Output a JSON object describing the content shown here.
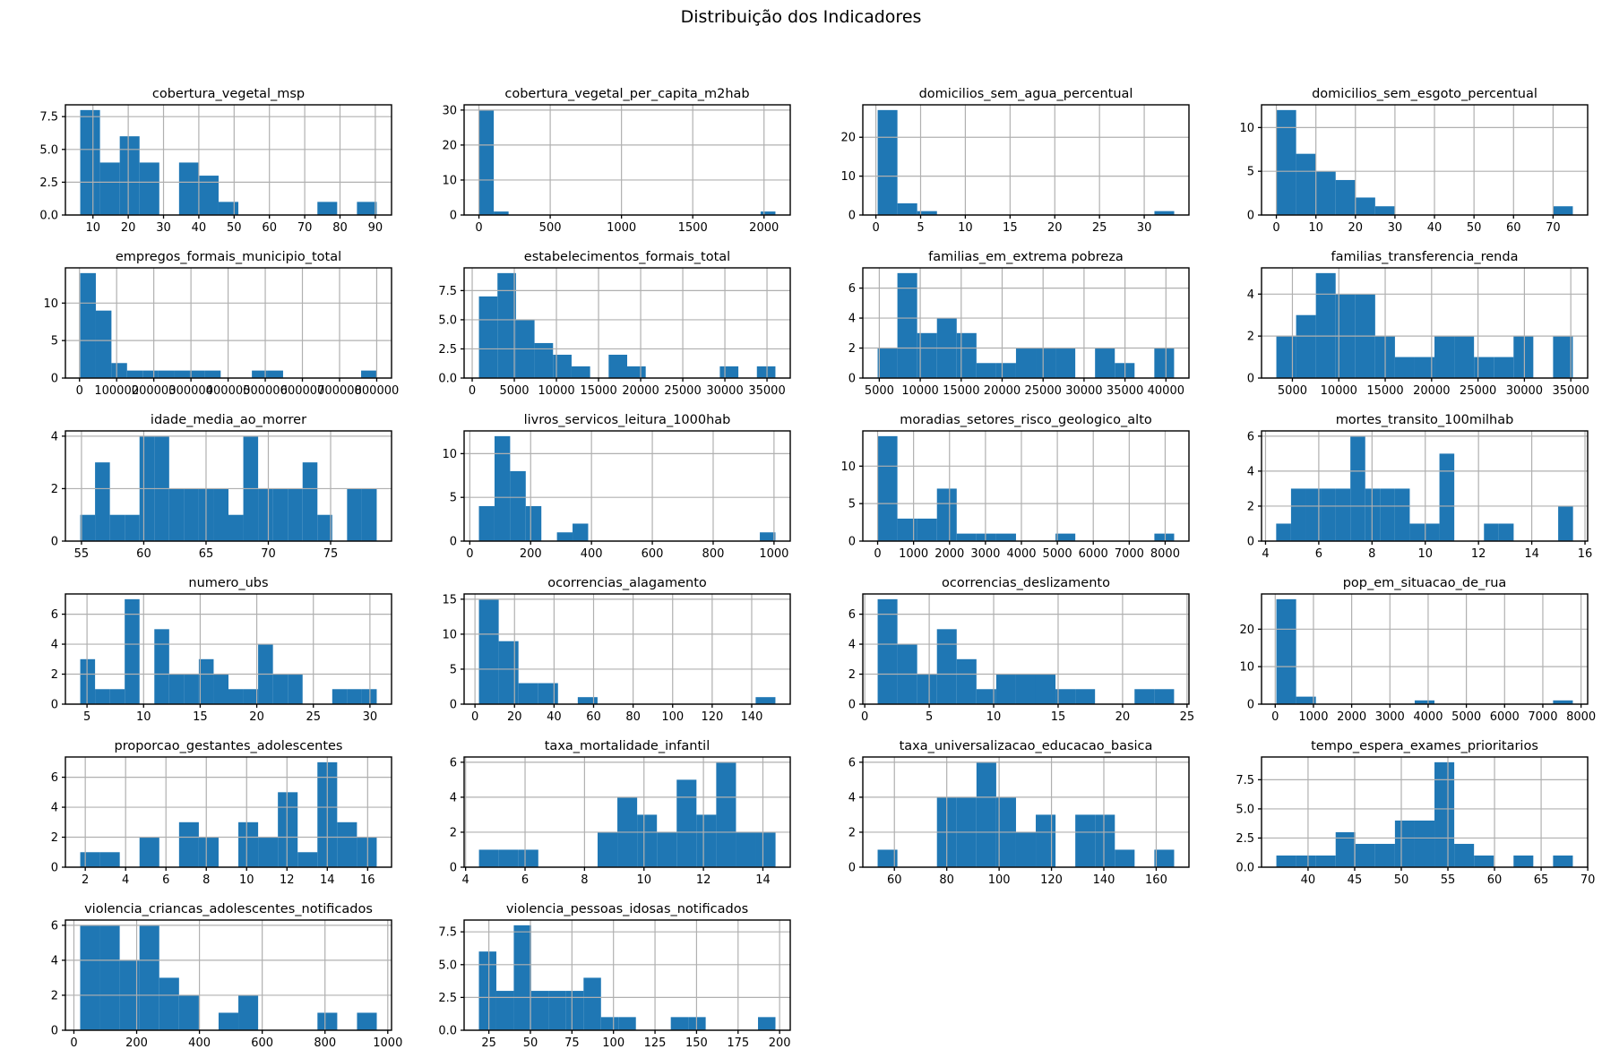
{
  "title": "Distribuição dos Indicadores",
  "colors": {
    "bar": "#1f77b4",
    "grid": "#b0b0b0",
    "spine": "#000000",
    "text": "#000000"
  },
  "chart_data": [
    {
      "type": "bar",
      "kind": "histogram",
      "title": "cobertura_vegetal_msp",
      "bin_start": 6.4,
      "bin_width": 5.6,
      "values": [
        8,
        4,
        6,
        4,
        0,
        4,
        3,
        1,
        0,
        0,
        0,
        0,
        1,
        0,
        1
      ],
      "xlim": [
        2.2,
        94.6
      ],
      "ylim": [
        0,
        8.4
      ],
      "xticks": [
        10,
        20,
        30,
        40,
        50,
        60,
        70,
        80,
        90
      ],
      "xtick_labels": [
        "10",
        "20",
        "30",
        "40",
        "50",
        "60",
        "70",
        "80",
        "90"
      ],
      "yticks": [
        0,
        2.5,
        5,
        7.5
      ],
      "ytick_labels": [
        "0.0",
        "2.5",
        "5.0",
        "7.5"
      ]
    },
    {
      "type": "bar",
      "kind": "histogram",
      "title": "cobertura_vegetal_per_capita_m2hab",
      "bin_start": 0,
      "bin_width": 104,
      "values": [
        30,
        1,
        0,
        0,
        0,
        0,
        0,
        0,
        0,
        0,
        0,
        0,
        0,
        0,
        0,
        0,
        0,
        0,
        0,
        1
      ],
      "xlim": [
        -104,
        2184
      ],
      "ylim": [
        0,
        31.5
      ],
      "xticks": [
        0,
        500,
        1000,
        1500,
        2000
      ],
      "xtick_labels": [
        "0",
        "500",
        "1000",
        "1500",
        "2000"
      ],
      "yticks": [
        0,
        10,
        20,
        30
      ],
      "ytick_labels": [
        "0",
        "10",
        "20",
        "30"
      ]
    },
    {
      "type": "bar",
      "kind": "histogram",
      "title": "domicilios_sem_agua_percentual",
      "bin_start": 0.2,
      "bin_width": 2.21,
      "values": [
        27,
        3,
        1,
        0,
        0,
        0,
        0,
        0,
        0,
        0,
        0,
        0,
        0,
        0,
        1
      ],
      "xlim": [
        -1.46,
        35.0
      ],
      "ylim": [
        0,
        28.35
      ],
      "xticks": [
        0,
        5,
        10,
        15,
        20,
        25,
        30
      ],
      "xtick_labels": [
        "0",
        "5",
        "10",
        "15",
        "20",
        "25",
        "30"
      ],
      "yticks": [
        0,
        10,
        20
      ],
      "ytick_labels": [
        "0",
        "10",
        "20"
      ]
    },
    {
      "type": "bar",
      "kind": "histogram",
      "title": "domicilios_sem_esgoto_percentual",
      "bin_start": 0,
      "bin_width": 5,
      "values": [
        12,
        7,
        5,
        4,
        2,
        1,
        0,
        0,
        0,
        0,
        0,
        0,
        0,
        0,
        1
      ],
      "xlim": [
        -3.75,
        78.75
      ],
      "ylim": [
        0,
        12.6
      ],
      "xticks": [
        0,
        10,
        20,
        30,
        40,
        50,
        60,
        70
      ],
      "xtick_labels": [
        "0",
        "10",
        "20",
        "30",
        "40",
        "50",
        "60",
        "70"
      ],
      "yticks": [
        0,
        5,
        10
      ],
      "ytick_labels": [
        "0",
        "5",
        "10"
      ]
    },
    {
      "type": "bar",
      "kind": "histogram",
      "title": "empregos_formais_municipio_total",
      "bin_start": 2000,
      "bin_width": 42000,
      "values": [
        14,
        9,
        2,
        1,
        1,
        1,
        1,
        1,
        1,
        0,
        0,
        1,
        1,
        0,
        0,
        0,
        0,
        0,
        1
      ],
      "xlim": [
        -37900,
        839900
      ],
      "ylim": [
        0,
        14.7
      ],
      "xticks": [
        0,
        100000,
        200000,
        300000,
        400000,
        500000,
        600000,
        700000,
        800000
      ],
      "xtick_labels": [
        "0",
        "100000",
        "200000",
        "300000",
        "400000",
        "500000",
        "600000",
        "700000",
        "800000"
      ],
      "yticks": [
        0,
        5,
        10
      ],
      "ytick_labels": [
        "0",
        "5",
        "10"
      ]
    },
    {
      "type": "bar",
      "kind": "histogram",
      "title": "estabelecimentos_formais_total",
      "bin_start": 800,
      "bin_width": 2200,
      "values": [
        7,
        9,
        5,
        3,
        2,
        1,
        0,
        2,
        1,
        0,
        0,
        0,
        0,
        1,
        0,
        1
      ],
      "xlim": [
        -960,
        37760
      ],
      "ylim": [
        0,
        9.45
      ],
      "xticks": [
        0,
        5000,
        10000,
        15000,
        20000,
        25000,
        30000,
        35000
      ],
      "xtick_labels": [
        "0",
        "5000",
        "10000",
        "15000",
        "20000",
        "25000",
        "30000",
        "35000"
      ],
      "yticks": [
        0,
        2.5,
        5,
        7.5
      ],
      "ytick_labels": [
        "0.0",
        "2.5",
        "5.0",
        "7.5"
      ]
    },
    {
      "type": "bar",
      "kind": "histogram",
      "title": "familias_em_extrema pobreza",
      "bin_start": 4800,
      "bin_width": 2413,
      "values": [
        2,
        7,
        3,
        4,
        3,
        1,
        1,
        2,
        2,
        2,
        0,
        2,
        1,
        0,
        2
      ],
      "xlim": [
        2990,
        42810
      ],
      "ylim": [
        0,
        7.35
      ],
      "xticks": [
        5000,
        10000,
        15000,
        20000,
        25000,
        30000,
        35000,
        40000
      ],
      "xtick_labels": [
        "5000",
        "10000",
        "15000",
        "20000",
        "25000",
        "30000",
        "35000",
        "40000"
      ],
      "yticks": [
        0,
        2,
        4,
        6
      ],
      "ytick_labels": [
        "0",
        "2",
        "4",
        "6"
      ]
    },
    {
      "type": "bar",
      "kind": "histogram",
      "title": "familias_transferencia_renda",
      "bin_start": 3270,
      "bin_width": 2130,
      "values": [
        2,
        3,
        5,
        4,
        4,
        2,
        1,
        1,
        2,
        2,
        1,
        1,
        2,
        0,
        2
      ],
      "xlim": [
        1673,
        36817
      ],
      "ylim": [
        0,
        5.25
      ],
      "xticks": [
        5000,
        10000,
        15000,
        20000,
        25000,
        30000,
        35000
      ],
      "xtick_labels": [
        "5000",
        "10000",
        "15000",
        "20000",
        "25000",
        "30000",
        "35000"
      ],
      "yticks": [
        0,
        2,
        4
      ],
      "ytick_labels": [
        "0",
        "2",
        "4"
      ]
    },
    {
      "type": "bar",
      "kind": "histogram",
      "title": "idade_media_ao_morrer",
      "bin_start": 54.9,
      "bin_width": 1.19,
      "values": [
        1,
        3,
        1,
        1,
        4,
        4,
        2,
        2,
        2,
        2,
        1,
        4,
        2,
        2,
        2,
        3,
        1,
        0,
        2,
        2
      ],
      "xlim": [
        53.71,
        79.89
      ],
      "ylim": [
        0,
        4.2
      ],
      "xticks": [
        55,
        60,
        65,
        70,
        75
      ],
      "xtick_labels": [
        "55",
        "60",
        "65",
        "70",
        "75"
      ],
      "yticks": [
        0,
        2,
        4
      ],
      "ytick_labels": [
        "0",
        "2",
        "4"
      ]
    },
    {
      "type": "bar",
      "kind": "histogram",
      "title": "livros_servicos_leitura_1000hab",
      "bin_start": 30,
      "bin_width": 51.3,
      "values": [
        4,
        12,
        8,
        4,
        0,
        1,
        2,
        0,
        0,
        0,
        0,
        0,
        0,
        0,
        0,
        0,
        0,
        0,
        1
      ],
      "xlim": [
        -18.7,
        1053.4
      ],
      "ylim": [
        0,
        12.6
      ],
      "xticks": [
        0,
        200,
        400,
        600,
        800,
        1000
      ],
      "xtick_labels": [
        "0",
        "200",
        "400",
        "600",
        "800",
        "1000"
      ],
      "yticks": [
        0,
        5,
        10
      ],
      "ytick_labels": [
        "0",
        "5",
        "10"
      ]
    },
    {
      "type": "bar",
      "kind": "histogram",
      "title": "moradias_setores_risco_geologico_alto",
      "bin_start": 0,
      "bin_width": 550,
      "values": [
        14,
        3,
        3,
        7,
        1,
        1,
        1,
        0,
        0,
        1,
        0,
        0,
        0,
        0,
        1
      ],
      "xlim": [
        -412,
        8662
      ],
      "ylim": [
        0,
        14.7
      ],
      "xticks": [
        0,
        1000,
        2000,
        3000,
        4000,
        5000,
        6000,
        7000,
        8000
      ],
      "xtick_labels": [
        "0",
        "1000",
        "2000",
        "3000",
        "4000",
        "5000",
        "6000",
        "7000",
        "8000"
      ],
      "yticks": [
        0,
        5,
        10
      ],
      "ytick_labels": [
        "0",
        "5",
        "10"
      ]
    },
    {
      "type": "bar",
      "kind": "histogram",
      "title": "mortes_transito_100milhab",
      "bin_start": 4.4,
      "bin_width": 0.5575,
      "values": [
        1,
        3,
        3,
        3,
        3,
        6,
        3,
        3,
        3,
        1,
        1,
        5,
        0,
        0,
        1,
        1,
        0,
        0,
        0,
        2
      ],
      "xlim": [
        3.85,
        16.1
      ],
      "ylim": [
        0,
        6.3
      ],
      "xticks": [
        4,
        6,
        8,
        10,
        12,
        14,
        16
      ],
      "xtick_labels": [
        "4",
        "6",
        "8",
        "10",
        "12",
        "14",
        "16"
      ],
      "yticks": [
        0,
        2,
        4,
        6
      ],
      "ytick_labels": [
        "0",
        "2",
        "4",
        "6"
      ]
    },
    {
      "type": "bar",
      "kind": "histogram",
      "title": "numero_ubs",
      "bin_start": 4.4,
      "bin_width": 1.31,
      "values": [
        3,
        1,
        1,
        7,
        0,
        5,
        2,
        2,
        3,
        2,
        1,
        1,
        4,
        2,
        2,
        0,
        0,
        1,
        1,
        1
      ],
      "xlim": [
        3.09,
        31.91
      ],
      "ylim": [
        0,
        7.35
      ],
      "xticks": [
        5,
        10,
        15,
        20,
        25,
        30
      ],
      "xtick_labels": [
        "5",
        "10",
        "15",
        "20",
        "25",
        "30"
      ],
      "yticks": [
        0,
        2,
        4,
        6
      ],
      "ytick_labels": [
        "0",
        "2",
        "4",
        "6"
      ]
    },
    {
      "type": "bar",
      "kind": "histogram",
      "title": "ocorrencias_alagamento",
      "bin_start": 2,
      "bin_width": 10,
      "values": [
        15,
        9,
        3,
        3,
        0,
        1,
        0,
        0,
        0,
        0,
        0,
        0,
        0,
        0,
        1
      ],
      "xlim": [
        -5.5,
        159.5
      ],
      "ylim": [
        0,
        15.75
      ],
      "xticks": [
        0,
        20,
        40,
        60,
        80,
        100,
        120,
        140
      ],
      "xtick_labels": [
        "0",
        "20",
        "40",
        "60",
        "80",
        "100",
        "120",
        "140"
      ],
      "yticks": [
        0,
        5,
        10,
        15
      ],
      "ytick_labels": [
        "0",
        "5",
        "10",
        "15"
      ]
    },
    {
      "type": "bar",
      "kind": "histogram",
      "title": "ocorrencias_deslizamento",
      "bin_start": 1,
      "bin_width": 1.533,
      "values": [
        7,
        4,
        2,
        5,
        3,
        1,
        2,
        2,
        2,
        1,
        1,
        0,
        0,
        1,
        1
      ],
      "xlim": [
        -0.15,
        25.15
      ],
      "ylim": [
        0,
        7.35
      ],
      "xticks": [
        0,
        5,
        10,
        15,
        20,
        25
      ],
      "xtick_labels": [
        "0",
        "5",
        "10",
        "15",
        "20",
        "25"
      ],
      "yticks": [
        0,
        2,
        4,
        6
      ],
      "ytick_labels": [
        "0",
        "2",
        "4",
        "6"
      ]
    },
    {
      "type": "bar",
      "kind": "histogram",
      "title": "pop_em_situacao_de_rua",
      "bin_start": 30,
      "bin_width": 517,
      "values": [
        28,
        2,
        0,
        0,
        0,
        0,
        0,
        1,
        0,
        0,
        0,
        0,
        0,
        0,
        1
      ],
      "xlim": [
        -358,
        8173
      ],
      "ylim": [
        0,
        29.4
      ],
      "xticks": [
        0,
        1000,
        2000,
        3000,
        4000,
        5000,
        6000,
        7000,
        8000
      ],
      "xtick_labels": [
        "0",
        "1000",
        "2000",
        "3000",
        "4000",
        "5000",
        "6000",
        "7000",
        "8000"
      ],
      "yticks": [
        0,
        10,
        20
      ],
      "ytick_labels": [
        "0",
        "10",
        "20"
      ]
    },
    {
      "type": "bar",
      "kind": "histogram",
      "title": "proporcao_gestantes_adolescentes",
      "bin_start": 1.75,
      "bin_width": 0.98,
      "values": [
        1,
        1,
        0,
        2,
        0,
        3,
        2,
        0,
        3,
        2,
        5,
        1,
        7,
        3,
        2
      ],
      "xlim": [
        1.015,
        17.185
      ],
      "ylim": [
        0,
        7.35
      ],
      "xticks": [
        2,
        4,
        6,
        8,
        10,
        12,
        14,
        16
      ],
      "xtick_labels": [
        "2",
        "4",
        "6",
        "8",
        "10",
        "12",
        "14",
        "16"
      ],
      "yticks": [
        0,
        2,
        4,
        6
      ],
      "ytick_labels": [
        "0",
        "2",
        "4",
        "6"
      ]
    },
    {
      "type": "bar",
      "kind": "histogram",
      "title": "taxa_mortalidade_infantil",
      "bin_start": 4.45,
      "bin_width": 0.665,
      "values": [
        1,
        1,
        1,
        0,
        0,
        0,
        2,
        4,
        3,
        2,
        5,
        3,
        6,
        2,
        2
      ],
      "xlim": [
        3.95,
        14.92
      ],
      "ylim": [
        0,
        6.3
      ],
      "xticks": [
        4,
        6,
        8,
        10,
        12,
        14
      ],
      "xtick_labels": [
        "4",
        "6",
        "8",
        "10",
        "12",
        "14"
      ],
      "yticks": [
        0,
        2,
        4,
        6
      ],
      "ytick_labels": [
        "0",
        "2",
        "4",
        "6"
      ]
    },
    {
      "type": "bar",
      "kind": "histogram",
      "title": "taxa_universalizacao_educacao_basica",
      "bin_start": 53.6,
      "bin_width": 7.55,
      "values": [
        1,
        0,
        0,
        4,
        4,
        6,
        4,
        2,
        3,
        0,
        3,
        3,
        1,
        0,
        1
      ],
      "xlim": [
        47.94,
        172.51
      ],
      "ylim": [
        0,
        6.3
      ],
      "xticks": [
        60,
        80,
        100,
        120,
        140,
        160
      ],
      "xtick_labels": [
        "60",
        "80",
        "100",
        "120",
        "140",
        "160"
      ],
      "yticks": [
        0,
        2,
        4,
        6
      ],
      "ytick_labels": [
        "0",
        "2",
        "4",
        "6"
      ]
    },
    {
      "type": "bar",
      "kind": "histogram",
      "title": "tempo_espera_exames_prioritarios",
      "bin_start": 36.6,
      "bin_width": 2.12,
      "values": [
        1,
        1,
        1,
        3,
        2,
        2,
        4,
        4,
        9,
        2,
        1,
        0,
        1,
        0,
        1
      ],
      "xlim": [
        35.01,
        69.99
      ],
      "ylim": [
        0,
        9.45
      ],
      "xticks": [
        40,
        45,
        50,
        55,
        60,
        65,
        70
      ],
      "xtick_labels": [
        "40",
        "45",
        "50",
        "55",
        "60",
        "65",
        "70"
      ],
      "yticks": [
        0,
        2.5,
        5,
        7.5
      ],
      "ytick_labels": [
        "0.0",
        "2.5",
        "5.0",
        "7.5"
      ]
    },
    {
      "type": "bar",
      "kind": "histogram",
      "title": "violencia_criancas_adolescentes_notificados",
      "bin_start": 20,
      "bin_width": 63,
      "values": [
        6,
        6,
        4,
        6,
        3,
        2,
        0,
        1,
        2,
        0,
        0,
        0,
        1,
        0,
        1
      ],
      "xlim": [
        -27,
        1012
      ],
      "ylim": [
        0,
        6.3
      ],
      "xticks": [
        0,
        200,
        400,
        600,
        800,
        1000
      ],
      "xtick_labels": [
        "0",
        "200",
        "400",
        "600",
        "800",
        "1000"
      ],
      "yticks": [
        0,
        2,
        4,
        6
      ],
      "ytick_labels": [
        "0",
        "2",
        "4",
        "6"
      ]
    },
    {
      "type": "bar",
      "kind": "histogram",
      "title": "violencia_pessoas_idosas_notificados",
      "bin_start": 19,
      "bin_width": 10.5,
      "values": [
        6,
        3,
        8,
        3,
        3,
        3,
        4,
        1,
        1,
        0,
        0,
        1,
        1,
        0,
        0,
        0,
        1
      ],
      "xlim": [
        10.1,
        206.4
      ],
      "ylim": [
        0,
        8.4
      ],
      "xticks": [
        25,
        50,
        75,
        100,
        125,
        150,
        175,
        200
      ],
      "xtick_labels": [
        "25",
        "50",
        "75",
        "100",
        "125",
        "150",
        "175",
        "200"
      ],
      "yticks": [
        0,
        2.5,
        5,
        7.5
      ],
      "ytick_labels": [
        "0.0",
        "2.5",
        "5.0",
        "7.5"
      ]
    }
  ]
}
